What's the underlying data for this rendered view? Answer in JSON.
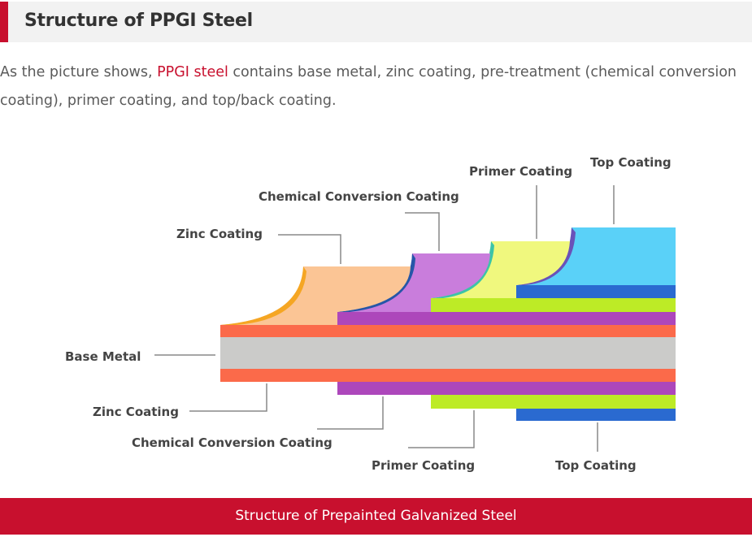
{
  "header": {
    "title": "Structure of PPGI Steel",
    "accent": "#c8102e"
  },
  "intro": {
    "before": "As the picture shows, ",
    "link": "PPGI steel",
    "after": " contains base metal, zinc coating, pre-treatment (chemical conversion coating), primer coating, and top/back coating."
  },
  "diagram": {
    "labels_top": {
      "top": "Top Coating",
      "primer": "Primer Coating",
      "chemical": "Chemical Conversion Coating",
      "zinc": "Zinc Coating"
    },
    "label_base": "Base Metal",
    "labels_bottom": {
      "zinc": "Zinc Coating",
      "chemical": "Chemical Conversion Coating",
      "primer": "Primer Coating",
      "top": "Top Coating"
    },
    "colors": {
      "base": "#cbcbc9",
      "zinc": "#fb6a4a",
      "chemical": "#ad47bb",
      "primer": "#bdeb26",
      "top": "#2a6ad0",
      "zinc_top": "#fbc595",
      "chem_top": "#c97ddc",
      "primer_top": "#f0f87e",
      "topcoat_top": "#5ad1f8"
    }
  },
  "caption": "Structure of Prepainted Galvanized Steel"
}
